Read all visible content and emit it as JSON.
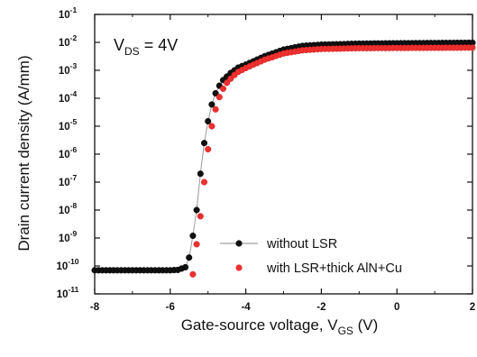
{
  "chart_data": {
    "type": "scatter",
    "title": "",
    "annotation": {
      "prefix": "V",
      "subscript": "DS",
      "suffix": " = 4V"
    },
    "xlabel": {
      "main": "Gate-source voltage, V",
      "subscript": "GS",
      "unit": " (V)"
    },
    "ylabel": "Drain current density (A/mm)",
    "xlim": [
      -8,
      2
    ],
    "ylim_log10": [
      -11,
      -1
    ],
    "yscale": "log",
    "xticks": [
      -8,
      -6,
      -4,
      -2,
      0,
      2
    ],
    "yticks": [
      {
        "base": "10",
        "exp": "-1"
      },
      {
        "base": "10",
        "exp": "-2"
      },
      {
        "base": "10",
        "exp": "-3"
      },
      {
        "base": "10",
        "exp": "-4"
      },
      {
        "base": "10",
        "exp": "-5"
      },
      {
        "base": "10",
        "exp": "-6"
      },
      {
        "base": "10",
        "exp": "-7"
      },
      {
        "base": "10",
        "exp": "-8"
      },
      {
        "base": "10",
        "exp": "-9"
      },
      {
        "base": "10",
        "exp": "-10"
      },
      {
        "base": "10",
        "exp": "-11"
      }
    ],
    "legend_position": "bottom-right",
    "series": [
      {
        "name": "without LSR",
        "color": "#111111",
        "marker": "circle",
        "line": true,
        "x": [
          -8.0,
          -7.5,
          -7.0,
          -6.5,
          -6.0,
          -5.8,
          -5.6,
          -5.5,
          -5.4,
          -5.3,
          -5.2,
          -5.1,
          -5.0,
          -4.9,
          -4.8,
          -4.7,
          -4.6,
          -4.5,
          -4.4,
          -4.3,
          -4.2,
          -4.0,
          -3.8,
          -3.5,
          -3.0,
          -2.5,
          -2.0,
          -1.0,
          0.0,
          1.0,
          2.0
        ],
        "y": [
          7e-11,
          7e-11,
          7e-11,
          7e-11,
          7e-11,
          7.2e-11,
          9e-11,
          2e-10,
          1.2e-09,
          1e-08,
          2e-07,
          2.5e-06,
          1.5e-05,
          6e-05,
          0.00015,
          0.00028,
          0.00045,
          0.0006,
          0.0008,
          0.001,
          0.00125,
          0.0016,
          0.0021,
          0.0032,
          0.0055,
          0.0075,
          0.0083,
          0.009,
          0.0093,
          0.0095,
          0.0097
        ]
      },
      {
        "name": "with LSR+thick AlN+Cu",
        "color": "#ee3030",
        "marker": "circle",
        "line": false,
        "x": [
          -5.4,
          -5.3,
          -5.2,
          -5.1,
          -5.0,
          -4.9,
          -4.8,
          -4.7,
          -4.6,
          -4.5,
          -4.4,
          -4.3,
          -4.2,
          -4.0,
          -3.8,
          -3.5,
          -3.0,
          -2.5,
          -2.0,
          -1.0,
          0.0,
          1.0,
          2.0
        ],
        "y": [
          5e-11,
          6e-10,
          6e-09,
          1e-07,
          1.5e-06,
          1e-05,
          4e-05,
          0.00011,
          0.00022,
          0.00036,
          0.0005,
          0.00068,
          0.00088,
          0.0012,
          0.0016,
          0.0024,
          0.004,
          0.0052,
          0.0058,
          0.0062,
          0.0063,
          0.0064,
          0.0065
        ]
      }
    ]
  }
}
